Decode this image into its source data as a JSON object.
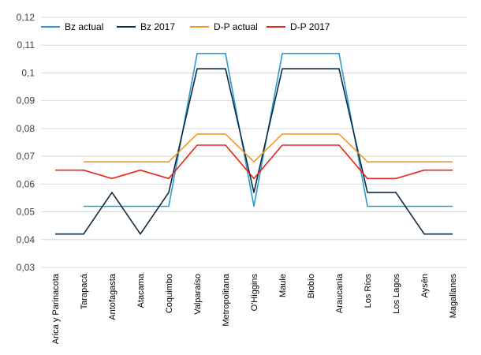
{
  "chart_data": {
    "type": "line",
    "categories": [
      "Arica y Parinacota",
      "Tarapacá",
      "Antofagasta",
      "Atacama",
      "Coquimbo",
      "Valparaíso",
      "Metropolitana",
      "O'Higgins",
      "Maule",
      "Biobío",
      "Araucanía",
      "Los Ríos",
      "Los Lagos",
      "Aysén",
      "Magallanes"
    ],
    "ylim": [
      0.03,
      0.12
    ],
    "yticks": [
      0.03,
      0.04,
      0.05,
      0.06,
      0.07,
      0.08,
      0.09,
      0.1,
      0.11,
      0.12
    ],
    "ytick_labels": [
      "0,03",
      "0,04",
      "0,05",
      "0,06",
      "0,07",
      "0,08",
      "0,09",
      "0,1",
      "0,11",
      "0,12"
    ],
    "grid": true,
    "legend_position": "top-left",
    "series": [
      {
        "name": "Bz actual",
        "color": "#2e9bd0",
        "values": [
          null,
          0.052,
          0.052,
          0.052,
          0.052,
          0.107,
          0.107,
          0.052,
          0.107,
          0.107,
          0.107,
          0.052,
          0.052,
          0.052,
          0.052
        ]
      },
      {
        "name": "Bz 2017",
        "color": "#0d2b45",
        "values": [
          0.042,
          0.042,
          0.057,
          0.042,
          0.057,
          0.1015,
          0.1015,
          0.057,
          0.1015,
          0.1015,
          0.1015,
          0.057,
          0.057,
          0.042,
          0.042
        ]
      },
      {
        "name": "D-P actual",
        "color": "#f39a1c",
        "values": [
          null,
          0.068,
          0.068,
          0.068,
          0.068,
          0.078,
          0.078,
          0.068,
          0.078,
          0.078,
          0.078,
          0.068,
          0.068,
          0.068,
          0.068
        ]
      },
      {
        "name": "D-P 2017",
        "color": "#e8241c",
        "values": [
          0.065,
          0.065,
          0.062,
          0.065,
          0.062,
          0.074,
          0.074,
          0.062,
          0.074,
          0.074,
          0.074,
          0.062,
          0.062,
          0.065,
          0.065
        ]
      }
    ]
  }
}
